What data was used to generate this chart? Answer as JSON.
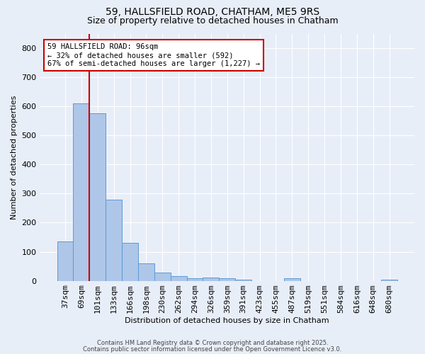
{
  "title1": "59, HALLSFIELD ROAD, CHATHAM, ME5 9RS",
  "title2": "Size of property relative to detached houses in Chatham",
  "xlabel": "Distribution of detached houses by size in Chatham",
  "ylabel": "Number of detached properties",
  "bar_labels": [
    "37sqm",
    "69sqm",
    "101sqm",
    "133sqm",
    "166sqm",
    "198sqm",
    "230sqm",
    "262sqm",
    "294sqm",
    "326sqm",
    "359sqm",
    "391sqm",
    "423sqm",
    "455sqm",
    "487sqm",
    "519sqm",
    "551sqm",
    "584sqm",
    "616sqm",
    "648sqm",
    "680sqm"
  ],
  "bar_values": [
    135,
    610,
    575,
    278,
    130,
    60,
    28,
    15,
    8,
    10,
    8,
    5,
    0,
    0,
    8,
    0,
    0,
    0,
    0,
    0,
    5
  ],
  "bar_color": "#aec6e8",
  "bar_edgecolor": "#5b9bd5",
  "bg_color": "#e8eef8",
  "grid_color": "#ffffff",
  "vline_x_index": 1.5,
  "vline_color": "#cc0000",
  "annotation_text": "59 HALLSFIELD ROAD: 96sqm\n← 32% of detached houses are smaller (592)\n67% of semi-detached houses are larger (1,227) →",
  "annotation_box_color": "#ffffff",
  "annotation_box_edgecolor": "#cc0000",
  "ylim": [
    0,
    850
  ],
  "yticks": [
    0,
    100,
    200,
    300,
    400,
    500,
    600,
    700,
    800
  ],
  "footer1": "Contains HM Land Registry data © Crown copyright and database right 2025.",
  "footer2": "Contains public sector information licensed under the Open Government Licence v3.0."
}
